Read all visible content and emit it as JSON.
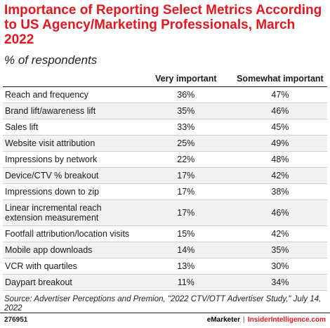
{
  "title": "Importance of Reporting Select Metrics According to US Agency/Marketing Professionals, March 2022",
  "subtitle": "% of respondents",
  "chart_data": {
    "type": "table",
    "columns": [
      "",
      "Very important",
      "Somewhat important"
    ],
    "rows": [
      {
        "label": "Reach and frequency",
        "values": [
          "36%",
          "47%"
        ]
      },
      {
        "label": "Brand lift/awareness lift",
        "values": [
          "35%",
          "46%"
        ]
      },
      {
        "label": "Sales lift",
        "values": [
          "33%",
          "45%"
        ]
      },
      {
        "label": "Website visit attribution",
        "values": [
          "25%",
          "49%"
        ]
      },
      {
        "label": "Impressions by network",
        "values": [
          "22%",
          "48%"
        ]
      },
      {
        "label": "Device/CTV % breakout",
        "values": [
          "17%",
          "42%"
        ]
      },
      {
        "label": "Impressions down to zip",
        "values": [
          "17%",
          "38%"
        ]
      },
      {
        "label": "Linear incremental reach extension measurement",
        "values": [
          "17%",
          "46%"
        ]
      },
      {
        "label": "Footfall attribution/location visits",
        "values": [
          "15%",
          "42%"
        ]
      },
      {
        "label": "Mobile app downloads",
        "values": [
          "14%",
          "35%"
        ]
      },
      {
        "label": "VCR with quartiles",
        "values": [
          "13%",
          "30%"
        ]
      },
      {
        "label": "Daypart breakout",
        "values": [
          "11%",
          "34%"
        ]
      }
    ]
  },
  "source": "Source: Advertiser Perceptions and Premion, \"2022 CTV/OTT Advertiser Study,\" July 14, 2022",
  "footer": {
    "id": "276951",
    "brand_left": "eMarketer",
    "separator": "|",
    "brand_right": "InsiderIntelligence.com"
  }
}
